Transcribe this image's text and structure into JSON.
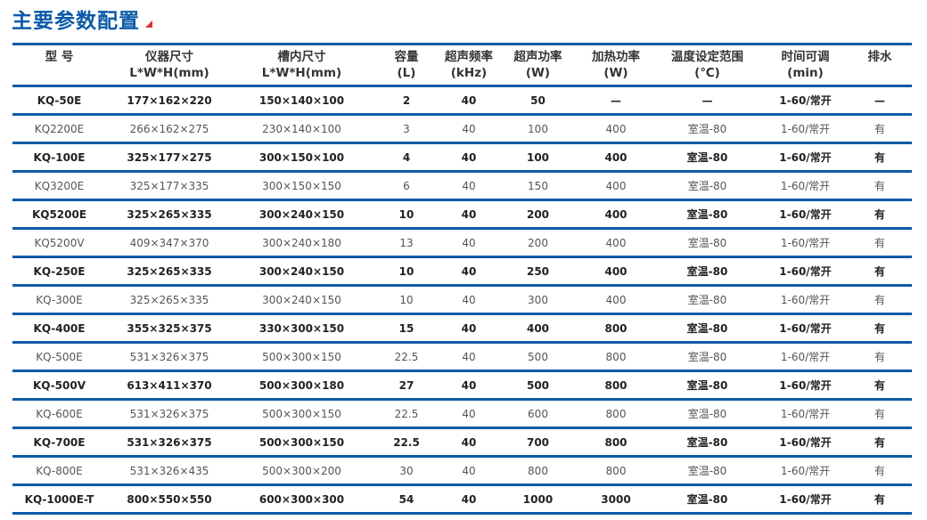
{
  "title": "主要参数配置",
  "accent_color": "#0d5aa7",
  "headers": [
    [
      "型  号",
      ""
    ],
    [
      "仪器尺寸",
      "L*W*H(mm)"
    ],
    [
      "槽内尺寸",
      "L*W*H(mm)"
    ],
    [
      "容量",
      "(L)"
    ],
    [
      "超声频率",
      "(kHz)"
    ],
    [
      "超声功率",
      "(W)"
    ],
    [
      "加热功率",
      "(W)"
    ],
    [
      "温度设定范围",
      "(℃)"
    ],
    [
      "时间可调",
      "(min)"
    ],
    [
      "排水",
      ""
    ]
  ],
  "rows": [
    [
      "KQ-50E",
      "177×162×220",
      "150×140×100",
      "2",
      "40",
      "50",
      "—",
      "—",
      "1-60/常开",
      "—"
    ],
    [
      "KQ2200E",
      "266×162×275",
      "230×140×100",
      "3",
      "40",
      "100",
      "400",
      "室温-80",
      "1-60/常开",
      "有"
    ],
    [
      "KQ-100E",
      "325×177×275",
      "300×150×100",
      "4",
      "40",
      "100",
      "400",
      "室温-80",
      "1-60/常开",
      "有"
    ],
    [
      "KQ3200E",
      "325×177×335",
      "300×150×150",
      "6",
      "40",
      "150",
      "400",
      "室温-80",
      "1-60/常开",
      "有"
    ],
    [
      "KQ5200E",
      "325×265×335",
      "300×240×150",
      "10",
      "40",
      "200",
      "400",
      "室温-80",
      "1-60/常开",
      "有"
    ],
    [
      "KQ5200V",
      "409×347×370",
      "300×240×180",
      "13",
      "40",
      "200",
      "400",
      "室温-80",
      "1-60/常开",
      "有"
    ],
    [
      "KQ-250E",
      "325×265×335",
      "300×240×150",
      "10",
      "40",
      "250",
      "400",
      "室温-80",
      "1-60/常开",
      "有"
    ],
    [
      "KQ-300E",
      "325×265×335",
      "300×240×150",
      "10",
      "40",
      "300",
      "400",
      "室温-80",
      "1-60/常开",
      "有"
    ],
    [
      "KQ-400E",
      "355×325×375",
      "330×300×150",
      "15",
      "40",
      "400",
      "800",
      "室温-80",
      "1-60/常开",
      "有"
    ],
    [
      "KQ-500E",
      "531×326×375",
      "500×300×150",
      "22.5",
      "40",
      "500",
      "800",
      "室温-80",
      "1-60/常开",
      "有"
    ],
    [
      "KQ-500V",
      "613×411×370",
      "500×300×180",
      "27",
      "40",
      "500",
      "800",
      "室温-80",
      "1-60/常开",
      "有"
    ],
    [
      "KQ-600E",
      "531×326×375",
      "500×300×150",
      "22.5",
      "40",
      "600",
      "800",
      "室温-80",
      "1-60/常开",
      "有"
    ],
    [
      "KQ-700E",
      "531×326×375",
      "500×300×150",
      "22.5",
      "40",
      "700",
      "800",
      "室温-80",
      "1-60/常开",
      "有"
    ],
    [
      "KQ-800E",
      "531×326×435",
      "500×300×200",
      "30",
      "40",
      "800",
      "800",
      "室温-80",
      "1-60/常开",
      "有"
    ],
    [
      "KQ-1000E-T",
      "800×550×550",
      "600×300×300",
      "54",
      "40",
      "1000",
      "3000",
      "室温-80",
      "1-60/常开",
      "有"
    ]
  ]
}
